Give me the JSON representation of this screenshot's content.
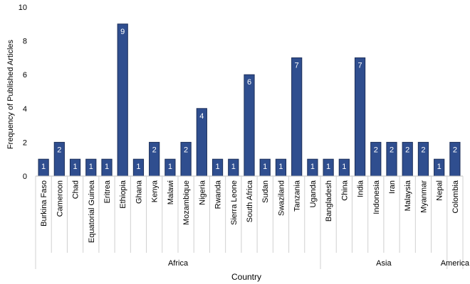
{
  "chart_data": {
    "type": "bar",
    "title": "",
    "xlabel": "Country",
    "ylabel": "Frequency of Published Articles",
    "ylim": [
      0,
      10
    ],
    "yticks": [
      0,
      2,
      4,
      6,
      8,
      10
    ],
    "grid": false,
    "legend": "none",
    "bar_color": "#2f4e8f",
    "bar_edge_color": "#1c2f5a",
    "label_color": "#ffffff",
    "categories": [
      "Burkina Faso",
      "Cameroon",
      "Chad",
      "Equatorial Guinea",
      "Eritrea",
      "Ethiopia",
      "Ghana",
      "Kenya",
      "Malawi",
      "Mozambique",
      "Nigeria",
      "Rwanda",
      "Sierra Leone",
      "South Africa",
      "Sudan",
      "Swaziland",
      "Tanzania",
      "Uganda",
      "Bangladesh",
      "China",
      "India",
      "Indonesia",
      "Iran",
      "Malaysia",
      "Myanmar",
      "Nepal",
      "Colombia"
    ],
    "values": [
      1,
      2,
      1,
      1,
      1,
      9,
      1,
      2,
      1,
      2,
      4,
      1,
      1,
      6,
      1,
      1,
      7,
      1,
      1,
      1,
      7,
      2,
      2,
      2,
      2,
      1,
      2
    ],
    "groups": [
      {
        "name": "Africa",
        "count": 18
      },
      {
        "name": "Asia",
        "count": 8
      },
      {
        "name": "America",
        "count": 1
      }
    ]
  }
}
